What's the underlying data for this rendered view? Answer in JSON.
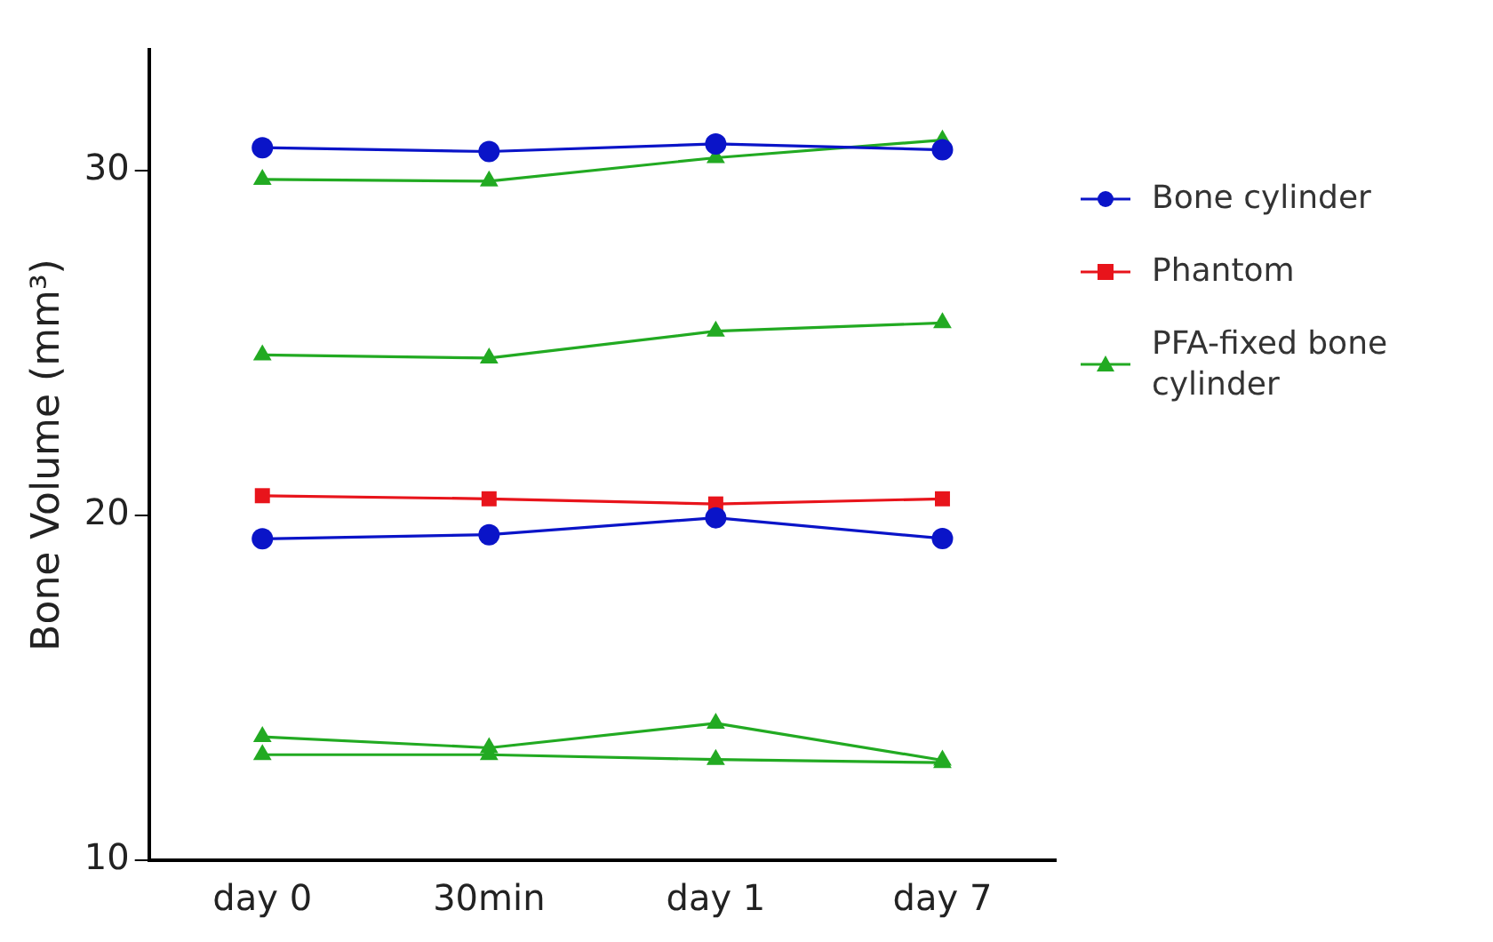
{
  "chart_data": {
    "type": "line",
    "ylabel": "Bone Volume (mm³)",
    "categories": [
      "day 0",
      "30min",
      "day 1",
      "day 7"
    ],
    "series": [
      {
        "name": "Bone cylinder",
        "color": "#0a14c8",
        "marker": "circle",
        "values": [
          30.66,
          30.55,
          30.77,
          30.6
        ]
      },
      {
        "color": "#0a14c8",
        "marker": "circle",
        "values": [
          19.32,
          19.44,
          19.93,
          19.33
        ]
      },
      {
        "name": "Phantom",
        "color": "#e8141b",
        "marker": "square",
        "values": [
          20.57,
          20.48,
          20.33,
          20.48
        ]
      },
      {
        "name": "PFA-fixed bone cylinder",
        "color": "#22aa22",
        "marker": "triangle",
        "values": [
          29.74,
          29.69,
          30.37,
          30.88
        ]
      },
      {
        "color": "#22aa22",
        "marker": "triangle",
        "values": [
          24.65,
          24.56,
          25.34,
          25.58
        ]
      },
      {
        "color": "#22aa22",
        "marker": "triangle",
        "values": [
          13.58,
          13.26,
          13.97,
          12.9
        ]
      },
      {
        "color": "#22aa22",
        "marker": "triangle",
        "values": [
          13.06,
          13.06,
          12.92,
          12.83
        ]
      }
    ],
    "ylim": [
      10,
      33.5
    ],
    "yticks": [
      10,
      20,
      30
    ],
    "grid": false,
    "legend": "right"
  }
}
